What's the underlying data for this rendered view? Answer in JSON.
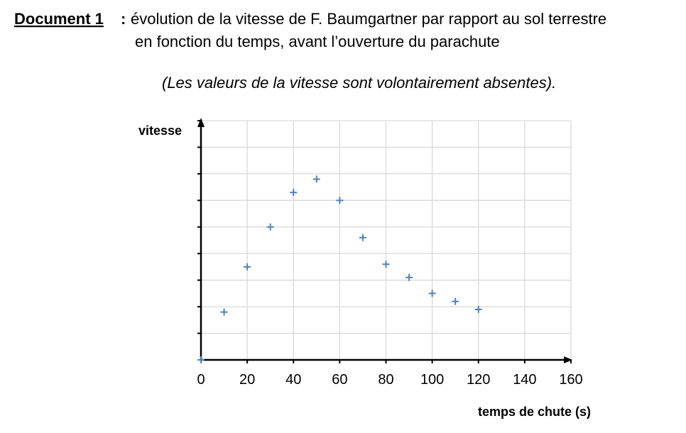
{
  "chart_data": {
    "type": "scatter",
    "label": "Document 1",
    "label_separator": ":",
    "title": [
      "évolution de la vitesse de F. Baumgartner par rapport au sol terrestre",
      "en fonction du temps, avant l’ouverture du parachute"
    ],
    "subtitle": "(Les valeurs de la vitesse sont volontairement absentes).",
    "ylabel": "vitesse",
    "xlabel": "temps de chute (s)",
    "x": [
      0,
      10,
      20,
      30,
      40,
      50,
      60,
      70,
      80,
      90,
      100,
      110,
      120
    ],
    "series": [
      {
        "color": "#4f81bd",
        "values": [
          0,
          1.8,
          3.5,
          5,
          6.3,
          6.8,
          6,
          4.6,
          3.6,
          3.1,
          2.5,
          2.2,
          1.9
        ]
      }
    ],
    "xlim": [
      0,
      160
    ],
    "xticks": [
      0,
      20,
      40,
      60,
      80,
      100,
      120,
      140,
      160
    ],
    "ylim": [
      0,
      9
    ],
    "yticks": [
      0,
      1,
      2,
      3,
      4,
      5,
      6,
      7,
      8,
      9
    ],
    "grid": true
  }
}
